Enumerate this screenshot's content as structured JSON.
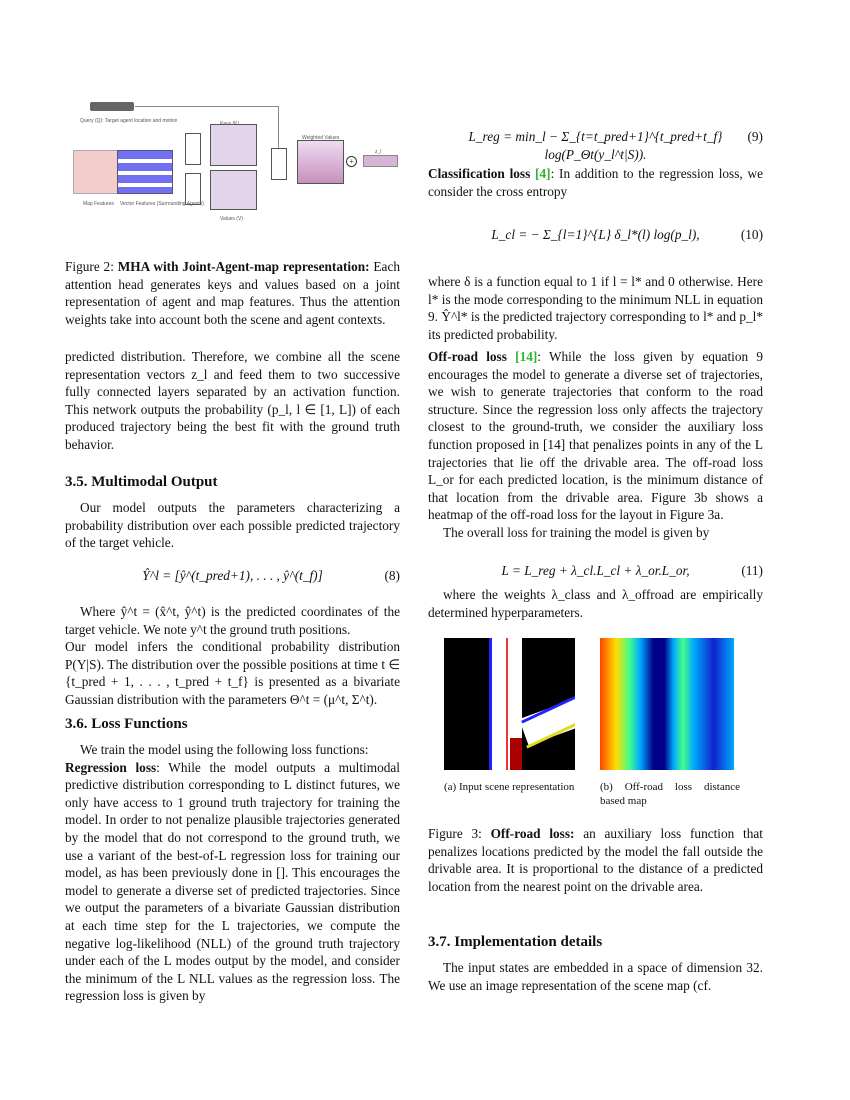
{
  "figure2": {
    "labels": {
      "query": "Query (Q): Target agent location and motion",
      "keys": "Keys (K)",
      "values": "Values (V)",
      "map": "Map Features",
      "vector": "Vector Features (Surrounding Agents)",
      "weighted": "Weighted Values",
      "z": "z_l",
      "plus": "+"
    },
    "caption_label": "Figure 2:",
    "caption_bold": "MHA with Joint-Agent-map representation:",
    "caption_text": "Each attention head generates keys and values based on a joint representation of agent and map features. Thus the attention weights take into account both the scene and agent contexts."
  },
  "left": {
    "para1": "predicted distribution. Therefore, we combine all the scene representation vectors z_l and feed them to two successive fully connected layers separated by an activation function. This network outputs the probability (p_l, l ∈ [1, L]) of each produced trajectory being the best fit with the ground truth behavior.",
    "h35": "3.5. Multimodal Output",
    "para2": "Our model outputs the parameters characterizing a probability distribution over each possible predicted trajectory of the target vehicle.",
    "eq8": "Ŷ^l = [ŷ^(t_pred+1), . . . , ŷ^(t_f)]",
    "eq8_num": "(8)",
    "para3": "Where ŷ^t = (x̂^t, ŷ^t) is the predicted coordinates of the target vehicle. We note y^t the ground truth positions.",
    "para4": "Our model infers the conditional probability distribution P(Y|S). The distribution over the possible positions at time t ∈ {t_pred + 1, . . . , t_pred + t_f} is presented as a bivariate Gaussian distribution with the parameters Θ^t = (μ^t, Σ^t).",
    "h36": "3.6. Loss Functions",
    "para5": "We train the model using the following loss functions:",
    "reg_bold": "Regression loss",
    "reg_text": ": While the model outputs a multimodal predictive distribution corresponding to L distinct futures, we only have access to 1 ground truth trajectory for training the model. In order to not penalize plausible trajectories generated by the model that do not correspond to the ground truth, we use a variant of the best-of-L regression loss for training our model, as has been previously done in []. This encourages the model to generate a diverse set of predicted trajectories. Since we output the parameters of a bivariate Gaussian distribution at each time step for the L trajectories, we compute the negative log-likelihood (NLL) of the ground truth trajectory under each of the L modes output by the model, and consider the minimum of the L NLL values as the regression loss. The regression loss is given by"
  },
  "right": {
    "eq9": "L_reg = min_l − Σ_{t=t_pred+1}^{t_pred+t_f} log(P_Θt(y_l^t|S)).",
    "eq9_num": "(9)",
    "cls_bold": "Classification loss",
    "cls_ref": "[4]",
    "cls_text": ": In addition to the regression loss, we consider the cross entropy",
    "eq10": "L_cl = − Σ_{l=1}^{L} δ_l*(l) log(p_l),",
    "eq10_num": "(10)",
    "para_where": "where δ is a function equal to 1 if l = l* and 0 otherwise. Here l* is the mode corresponding to the minimum NLL in equation 9. Ŷ^l* is the predicted trajectory corresponding to l* and p_l* its predicted probability.",
    "off_bold": "Off-road loss",
    "off_ref": "[14]",
    "off_text": ": While the loss given by equation 9 encourages the model to generate a diverse set of trajectories, we wish to generate trajectories that conform to the road structure. Since the regression loss only affects the trajectory closest to the ground-truth, we consider the auxiliary loss function proposed in [14] that penalizes points in any of the L trajectories that lie off the drivable area. The off-road loss L_or for each predicted location, is the minimum distance of that location from the drivable area. Figure 3b shows a heatmap of the off-road loss for the layout in Figure 3a.",
    "para_overall": "The overall loss for training the model is given by",
    "eq11": "L = L_reg + λ_cl.L_cl + λ_or.L_or,",
    "eq11_num": "(11)",
    "para_weights": "where the weights λ_class and λ_offroad are empirically determined hyperparameters.",
    "fig3a_caption": "(a) Input scene representation",
    "fig3b_caption": "(b) Off-road loss distance based map",
    "fig3_label": "Figure 3:",
    "fig3_bold": "Off-road loss:",
    "fig3_text": "an auxiliary loss function that penalizes locations predicted by the model the fall outside the drivable area. It is proportional to the distance of a predicted location from the nearest point on the drivable area.",
    "h37": "3.7. Implementation details",
    "para_impl": "The input states are embedded in a space of dimension 32. We use an image representation of the scene map (cf."
  }
}
